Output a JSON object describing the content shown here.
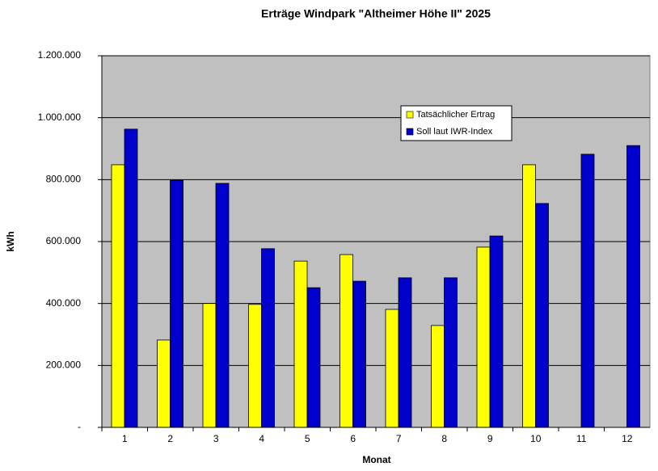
{
  "chart_data": {
    "type": "bar",
    "title": "Erträge Windpark \"Altheimer Höhe II\" 2025",
    "x_label": "Monat",
    "y_label": "kWh",
    "categories": [
      "1",
      "2",
      "3",
      "4",
      "5",
      "6",
      "7",
      "8",
      "9",
      "10",
      "11",
      "12"
    ],
    "series": [
      {
        "name": "Tatsächlicher Ertrag",
        "color": "#ffff00",
        "values": [
          848000,
          282000,
          400000,
          397000,
          537000,
          558000,
          381000,
          329000,
          582000,
          848000,
          null,
          null
        ]
      },
      {
        "name": "Soll laut IWR-Index",
        "color": "#0000cc",
        "values": [
          963000,
          798000,
          788000,
          577000,
          451000,
          472000,
          483000,
          483000,
          618000,
          723000,
          882000,
          910000
        ]
      }
    ],
    "ylim": [
      0,
      1200000
    ],
    "yticks": [
      {
        "value": 0,
        "label": "-"
      },
      {
        "value": 200000,
        "label": "200.000"
      },
      {
        "value": 400000,
        "label": "400.000"
      },
      {
        "value": 600000,
        "label": "600.000"
      },
      {
        "value": 800000,
        "label": "800.000"
      },
      {
        "value": 1000000,
        "label": "1.000.000"
      },
      {
        "value": 1200000,
        "label": "1.200.000"
      }
    ],
    "grid": true,
    "plot_background": "#c0c0c0"
  }
}
